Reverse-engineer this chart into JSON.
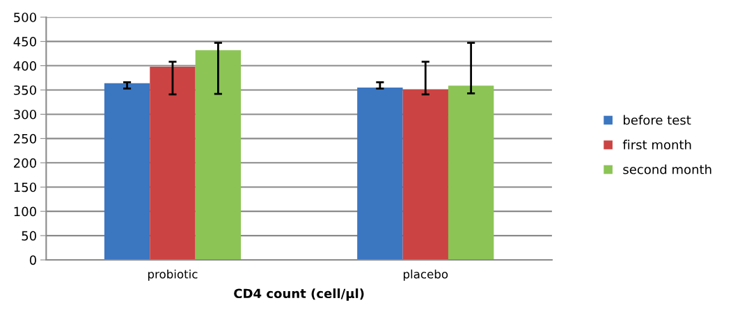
{
  "chart_data": {
    "type": "bar",
    "xlabel": "CD4 count (cell/µl)",
    "categories": [
      "probiotic",
      "placebo"
    ],
    "series": [
      {
        "name": "before test",
        "color": "#3b76c1",
        "values": [
          364,
          355
        ],
        "errors": [
          [
            353,
            366
          ],
          [
            353,
            366
          ]
        ]
      },
      {
        "name": "first month",
        "color": "#cc4343",
        "values": [
          398,
          351
        ],
        "errors": [
          [
            341,
            408
          ],
          [
            341,
            408
          ]
        ]
      },
      {
        "name": "second month",
        "color": "#8cc455",
        "values": [
          432,
          359
        ],
        "errors": [
          [
            342,
            447
          ],
          [
            343,
            447
          ]
        ]
      }
    ],
    "ylim": [
      0,
      500
    ],
    "yticks": [
      0,
      50,
      100,
      150,
      200,
      250,
      300,
      350,
      400,
      450,
      500
    ],
    "grid": "y",
    "legend": "right"
  }
}
